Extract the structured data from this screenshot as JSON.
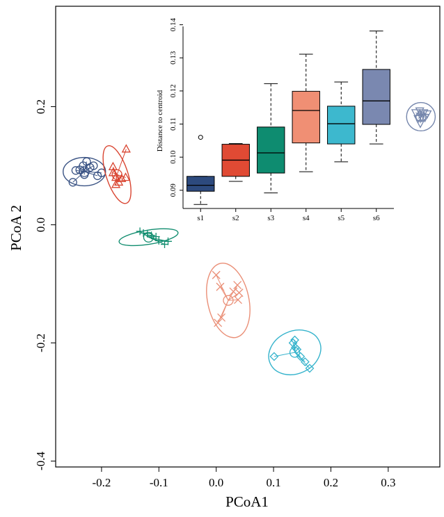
{
  "chart_data": [
    {
      "type": "scatter",
      "title": "",
      "xlabel": "PCoA1",
      "ylabel": "PCoA 2",
      "xlim": [
        -0.28,
        0.39
      ],
      "ylim": [
        -0.41,
        0.37
      ],
      "xticks": [
        -0.2,
        -0.1,
        0.0,
        0.1,
        0.2,
        0.3
      ],
      "xtick_labels": [
        "-0.2",
        "-0.1",
        "0.0",
        "0.1",
        "0.2",
        "0.3"
      ],
      "yticks": [
        0.2,
        0.0,
        -0.2,
        -0.4
      ],
      "ytick_labels": [
        "0.2",
        "0.0",
        "-0.2",
        "-0.4"
      ],
      "grid": false,
      "series": [
        {
          "marker": "circle",
          "color": "#3a5384",
          "centroid": [
            -0.23,
            0.09
          ],
          "ellipse_r": [
            0.037,
            0.024
          ],
          "ellipse_angle": 0,
          "points": [
            [
              -0.25,
              0.072
            ],
            [
              -0.245,
              0.092
            ],
            [
              -0.238,
              0.093
            ],
            [
              -0.232,
              0.1
            ],
            [
              -0.226,
              0.107
            ],
            [
              -0.22,
              0.097
            ],
            [
              -0.214,
              0.1
            ],
            [
              -0.207,
              0.083
            ],
            [
              -0.2,
              0.088
            ],
            [
              -0.23,
              0.085
            ]
          ]
        },
        {
          "marker": "triangle",
          "color": "#d94430",
          "centroid": [
            -0.173,
            0.085
          ],
          "ellipse_r": [
            0.019,
            0.051
          ],
          "ellipse_angle": 18,
          "points": [
            [
              -0.157,
              0.128
            ],
            [
              -0.18,
              0.098
            ],
            [
              -0.18,
              0.088
            ],
            [
              -0.175,
              0.08
            ],
            [
              -0.17,
              0.072
            ],
            [
              -0.165,
              0.078
            ],
            [
              -0.158,
              0.08
            ],
            [
              -0.175,
              0.068
            ]
          ]
        },
        {
          "marker": "plus",
          "color": "#0f8c6e",
          "centroid": [
            -0.118,
            -0.021
          ],
          "ellipse_r": [
            0.052,
            0.012
          ],
          "ellipse_angle": 9,
          "points": [
            [
              -0.133,
              -0.011
            ],
            [
              -0.127,
              -0.014
            ],
            [
              -0.12,
              -0.015
            ],
            [
              -0.113,
              -0.018
            ],
            [
              -0.105,
              -0.02
            ],
            [
              -0.1,
              -0.027
            ],
            [
              -0.09,
              -0.033
            ],
            [
              -0.084,
              -0.028
            ]
          ]
        },
        {
          "marker": "x",
          "color": "#ea8f77",
          "centroid": [
            0.021,
            -0.128
          ],
          "ellipse_r": [
            0.036,
            0.064
          ],
          "ellipse_angle": 12,
          "points": [
            [
              0.0,
              -0.085
            ],
            [
              0.007,
              -0.105
            ],
            [
              0.03,
              -0.113
            ],
            [
              0.037,
              -0.102
            ],
            [
              0.04,
              -0.115
            ],
            [
              0.038,
              -0.127
            ],
            [
              0.003,
              -0.166
            ],
            [
              0.009,
              -0.157
            ]
          ]
        },
        {
          "marker": "diamond",
          "color": "#35b3cc",
          "centroid": [
            0.137,
            -0.216
          ],
          "ellipse_r": [
            0.047,
            0.036
          ],
          "ellipse_angle": 25,
          "points": [
            [
              0.101,
              -0.223
            ],
            [
              0.134,
              -0.2
            ],
            [
              0.137,
              -0.195
            ],
            [
              0.138,
              -0.208
            ],
            [
              0.141,
              -0.211
            ],
            [
              0.147,
              -0.223
            ],
            [
              0.155,
              -0.232
            ],
            [
              0.163,
              -0.243
            ]
          ]
        },
        {
          "marker": "triangle-down",
          "color": "#7586ac",
          "centroid": [
            0.357,
            0.183
          ],
          "ellipse_r": [
            0.025,
            0.024
          ],
          "ellipse_angle": 0,
          "points": [
            [
              0.348,
              0.19
            ],
            [
              0.355,
              0.193
            ],
            [
              0.362,
              0.19
            ],
            [
              0.352,
              0.18
            ],
            [
              0.358,
              0.183
            ],
            [
              0.364,
              0.182
            ],
            [
              0.356,
              0.172
            ],
            [
              0.368,
              0.188
            ]
          ]
        }
      ]
    },
    {
      "type": "box",
      "title": "",
      "xlabel": "",
      "ylabel": "Distance to centroid",
      "ylim": [
        0.0845,
        0.1395
      ],
      "yticks": [
        0.09,
        0.1,
        0.11,
        0.12,
        0.13,
        0.14
      ],
      "ytick_labels": [
        "0.09",
        "0.10",
        "0.11",
        "0.12",
        "0.13",
        "0.14"
      ],
      "categories": [
        "s1",
        "s2",
        "s3",
        "s4",
        "s5",
        "s6"
      ],
      "colors": [
        "#2d4a7e",
        "#e04a34",
        "#0e8c70",
        "#f08f74",
        "#3db8ce",
        "#7a88b0"
      ],
      "boxes": [
        {
          "whisker_low": 0.0857,
          "q1": 0.0897,
          "median": 0.0915,
          "q3": 0.0942,
          "whisker_high": 0.0942,
          "outliers": [
            0.106
          ]
        },
        {
          "whisker_low": 0.0927,
          "q1": 0.0942,
          "median": 0.0991,
          "q3": 0.1039,
          "whisker_high": 0.1041,
          "outliers": []
        },
        {
          "whisker_low": 0.0892,
          "q1": 0.0952,
          "median": 0.1013,
          "q3": 0.1091,
          "whisker_high": 0.1222,
          "outliers": []
        },
        {
          "whisker_low": 0.0956,
          "q1": 0.1043,
          "median": 0.1141,
          "q3": 0.1199,
          "whisker_high": 0.1311,
          "outliers": []
        },
        {
          "whisker_low": 0.0986,
          "q1": 0.104,
          "median": 0.1101,
          "q3": 0.1154,
          "whisker_high": 0.1227,
          "outliers": []
        },
        {
          "whisker_low": 0.104,
          "q1": 0.1099,
          "median": 0.117,
          "q3": 0.1265,
          "whisker_high": 0.1381,
          "outliers": []
        }
      ]
    }
  ]
}
